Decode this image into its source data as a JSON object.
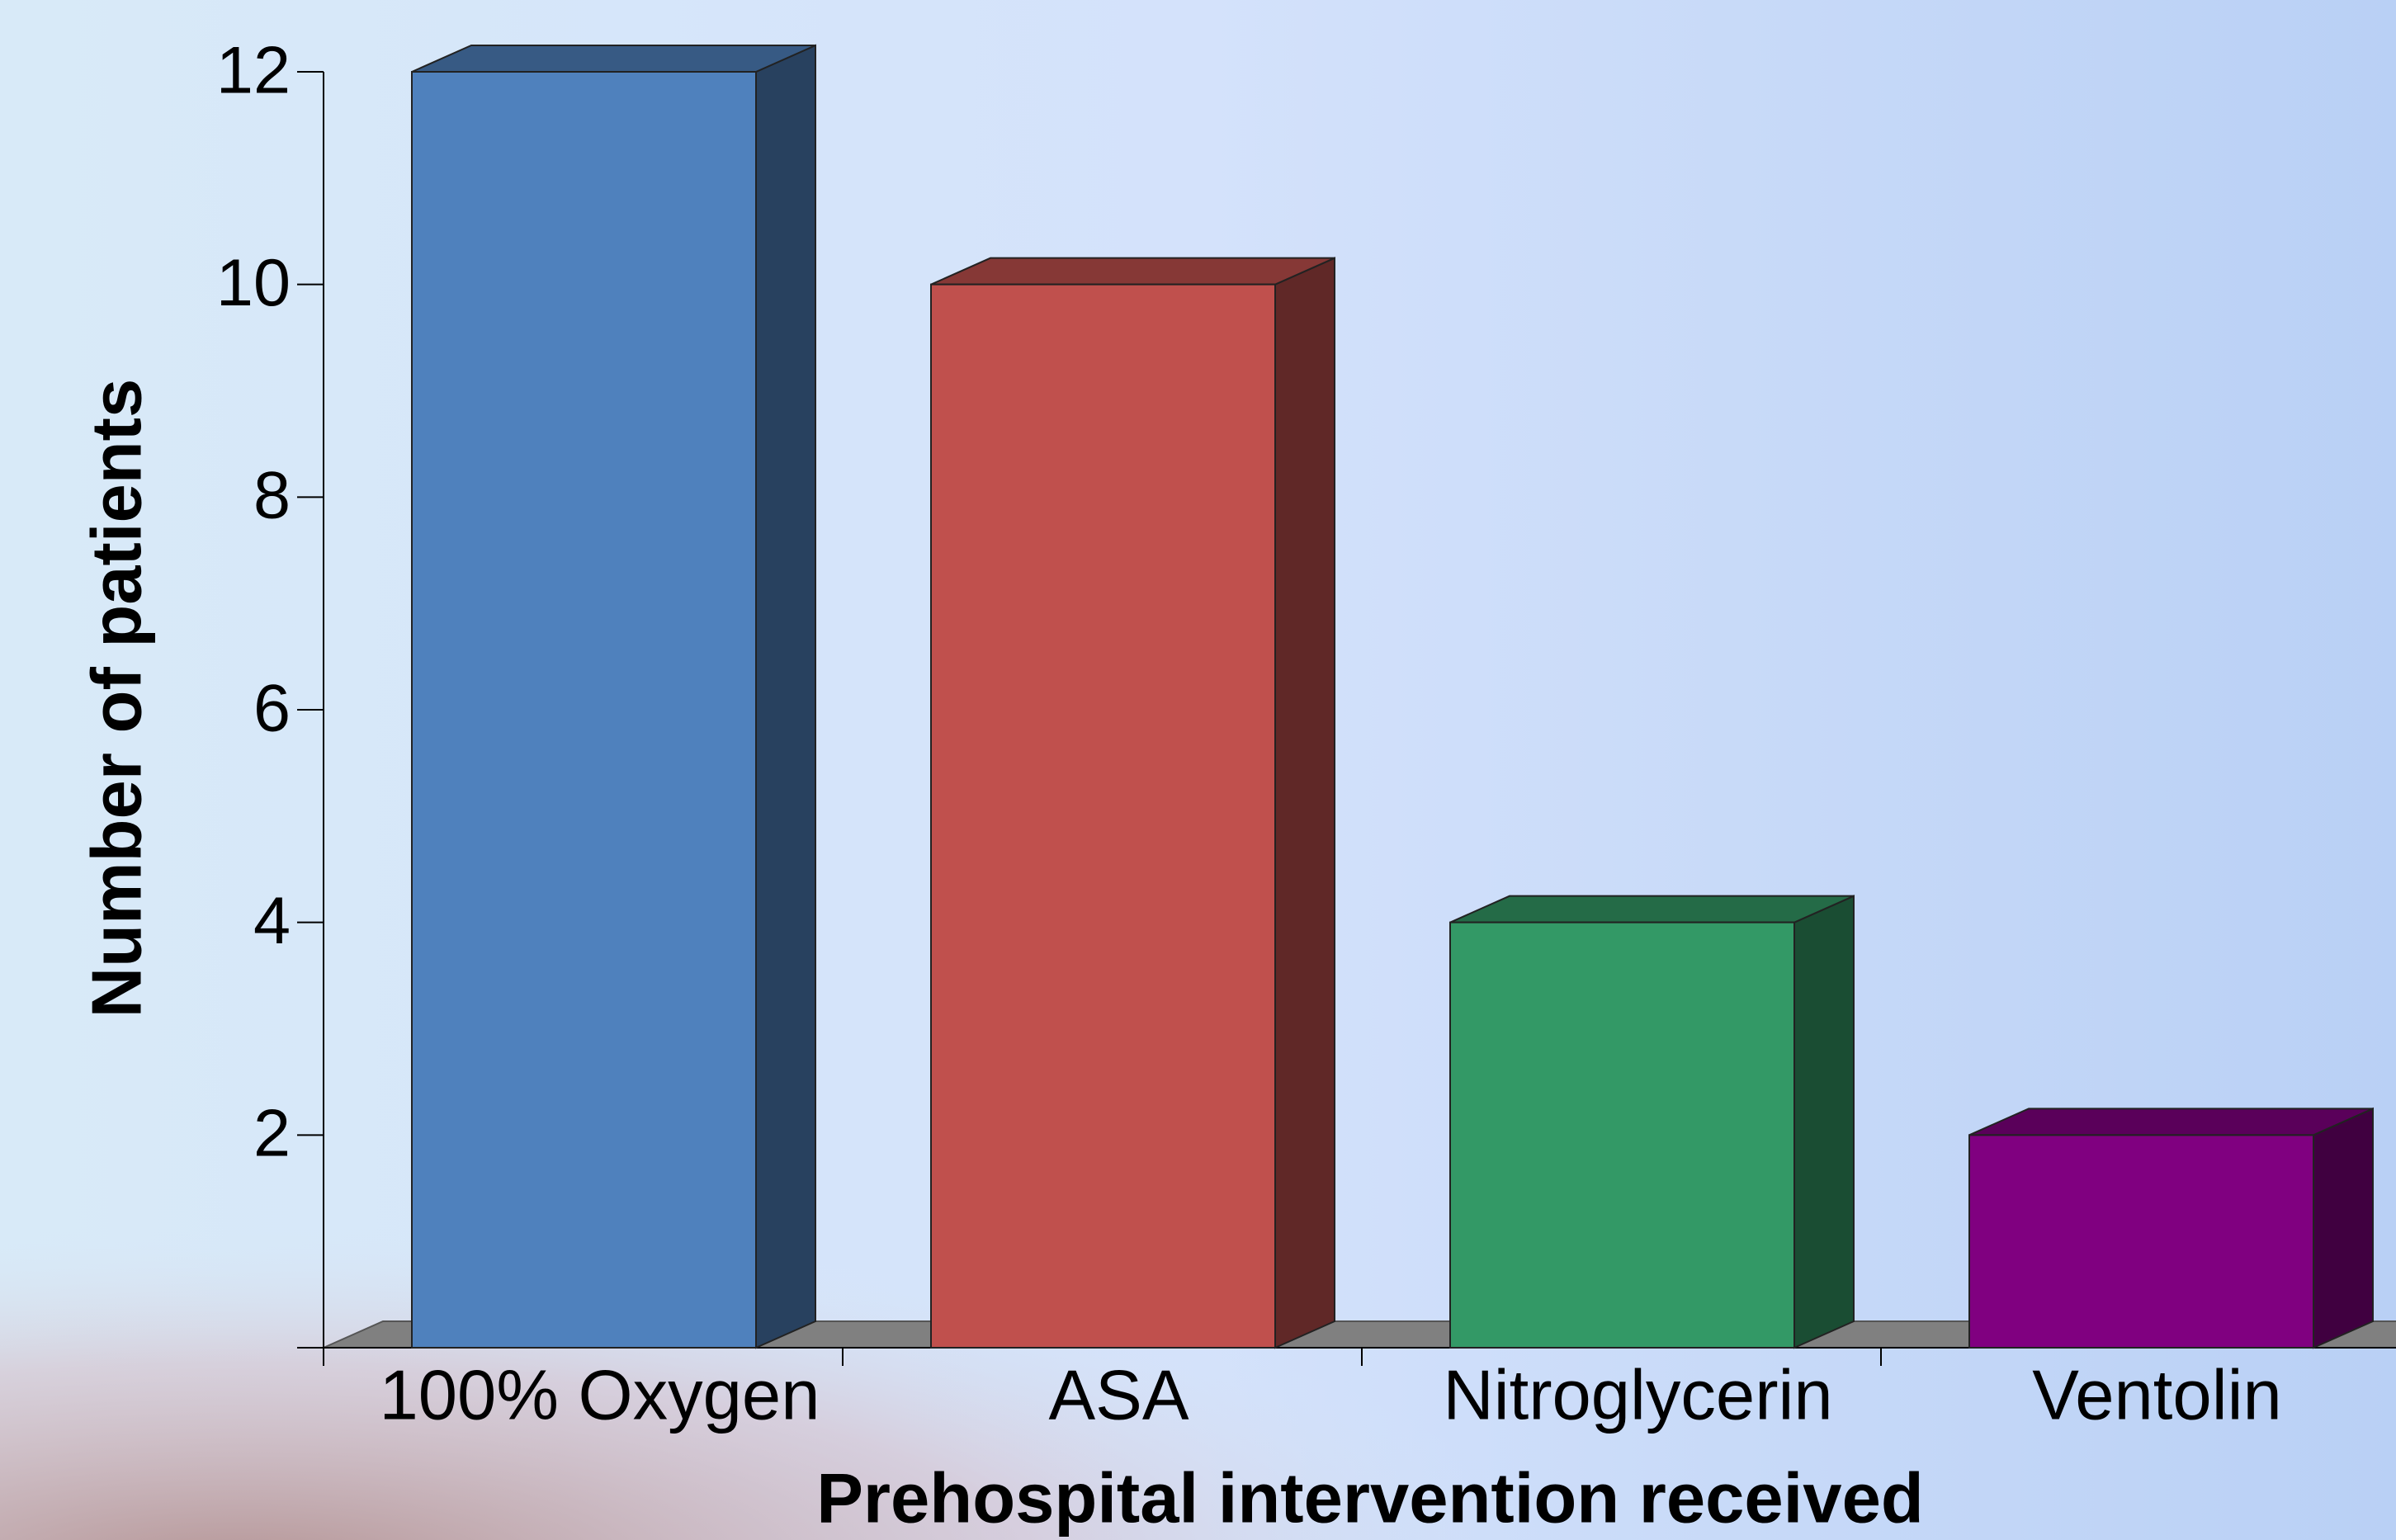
{
  "chart_data": {
    "type": "bar3d",
    "categories": [
      "100% Oxygen",
      "ASA",
      "Nitroglycerin",
      "Ventolin"
    ],
    "values": [
      12,
      10,
      4,
      2
    ],
    "colors": [
      "#4f81bd",
      "#c0504d",
      "#339966",
      "#800080"
    ],
    "ylim": [
      0,
      12
    ],
    "yticks": [
      2,
      4,
      6,
      8,
      10,
      12
    ],
    "ylabel": "Number of patients",
    "xlabel": "Prehospital intervention received"
  }
}
